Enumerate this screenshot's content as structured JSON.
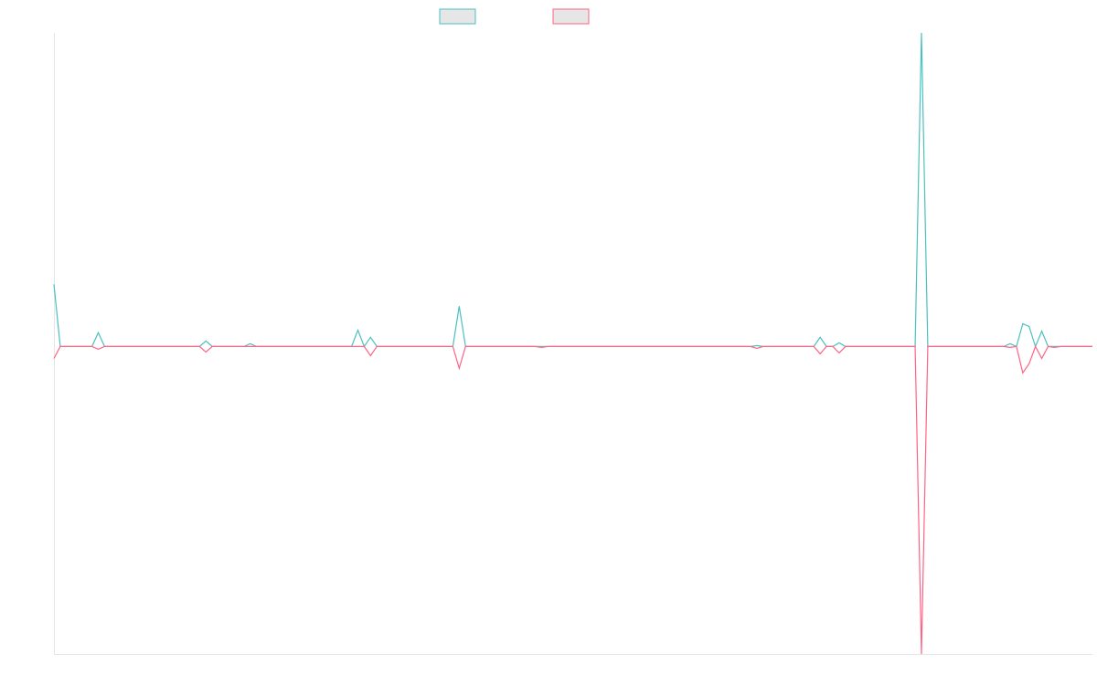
{
  "chart_data": {
    "type": "line",
    "ylim": [
      -100,
      102
    ],
    "series": [
      {
        "color": "#4bc0c0",
        "values": [
          20.2,
          0,
          0,
          0,
          0,
          0,
          0,
          4.5,
          0,
          0,
          0,
          0,
          0,
          0,
          0,
          0,
          0,
          0,
          0,
          0,
          0,
          0,
          0,
          0,
          1.8,
          0,
          0,
          0,
          0,
          0,
          0,
          0.9,
          0,
          0,
          0,
          0,
          0,
          0,
          0,
          0,
          0,
          0,
          0,
          0,
          0,
          0,
          0,
          0,
          5.3,
          0,
          3,
          0,
          0,
          0,
          0,
          0,
          0,
          0,
          0,
          0,
          0,
          0,
          0,
          0,
          13.1,
          0,
          0,
          0,
          0,
          0,
          0,
          0,
          0,
          0,
          0,
          0,
          0,
          0,
          0,
          0,
          0,
          0,
          0,
          0,
          0,
          0,
          0,
          0,
          0,
          0,
          0,
          0,
          0,
          0,
          0,
          0,
          0,
          0,
          0,
          0,
          0,
          0,
          0,
          0,
          0,
          0,
          0,
          0,
          0,
          0,
          0,
          0.3,
          0,
          0,
          0,
          0,
          0,
          0,
          0,
          0,
          0,
          3,
          0,
          0,
          1.2,
          0,
          0,
          0,
          0,
          0,
          0,
          0,
          0,
          0,
          0,
          0,
          0,
          102,
          0,
          0,
          0,
          0,
          0,
          0,
          0,
          0,
          0,
          0,
          0,
          0,
          0,
          0.9,
          0,
          7.4,
          6.5,
          0,
          5,
          0,
          0,
          0,
          0,
          0,
          0,
          0,
          0
        ]
      },
      {
        "color": "#ff6384",
        "values": [
          -3.9,
          0,
          0,
          0,
          0,
          0,
          0,
          -0.9,
          0,
          0,
          0,
          0,
          0,
          0,
          0,
          0,
          0,
          0,
          0,
          0,
          0,
          0,
          0,
          0,
          -1.8,
          0,
          0,
          0,
          0,
          0,
          0,
          0,
          0,
          0,
          0,
          0,
          0,
          0,
          0,
          0,
          0,
          0,
          0,
          0,
          0,
          0,
          0,
          0,
          0,
          0,
          -3,
          0,
          0,
          0,
          0,
          0,
          0,
          0,
          0,
          0,
          0,
          0,
          0,
          0,
          -7.1,
          0,
          0,
          0,
          0,
          0,
          0,
          0,
          0,
          0,
          0,
          0,
          0,
          -0.3,
          0,
          0,
          0,
          0,
          0,
          0,
          0,
          0,
          0,
          0,
          0,
          0,
          0,
          0,
          0,
          0,
          0,
          0,
          0,
          0,
          0,
          0,
          0,
          0,
          0,
          0,
          0,
          0,
          0,
          0,
          0,
          0,
          0,
          -0.6,
          0,
          0,
          0,
          0,
          0,
          0,
          0,
          0,
          0,
          -2.4,
          0,
          0,
          -2.1,
          0,
          0,
          0,
          0,
          0,
          0,
          0,
          0,
          0,
          0,
          0,
          0,
          -100,
          0,
          0,
          0,
          0,
          0,
          0,
          0,
          0,
          0,
          0,
          0,
          0,
          0,
          -0.3,
          0,
          -8.6,
          -5.6,
          0,
          -3.9,
          0,
          -0.3,
          0,
          0,
          0,
          0,
          0,
          0
        ]
      }
    ]
  }
}
